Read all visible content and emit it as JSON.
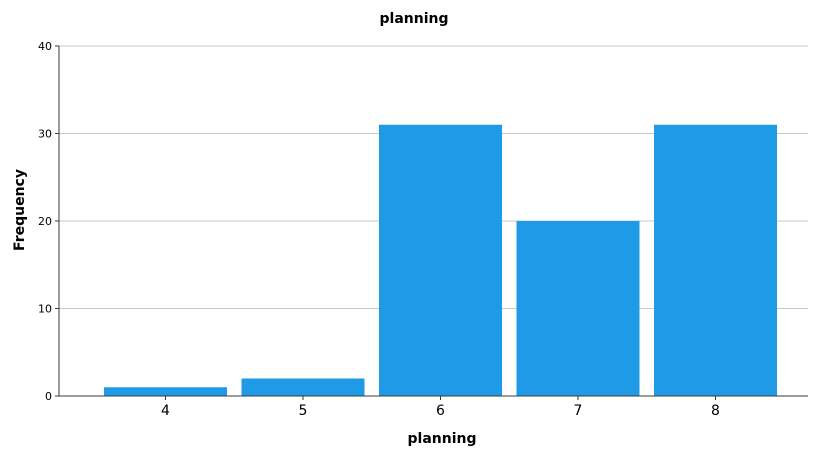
{
  "chart_data": {
    "type": "bar",
    "title": "planning",
    "xlabel": "planning",
    "ylabel": "Frequency",
    "categories": [
      "4",
      "5",
      "6",
      "7",
      "8"
    ],
    "values": [
      1,
      2,
      31,
      20,
      31
    ],
    "ylim": [
      0,
      40
    ],
    "yticks": [
      0,
      10,
      20,
      30,
      40
    ],
    "grid": true,
    "bar_color": "#1e9ae6"
  }
}
